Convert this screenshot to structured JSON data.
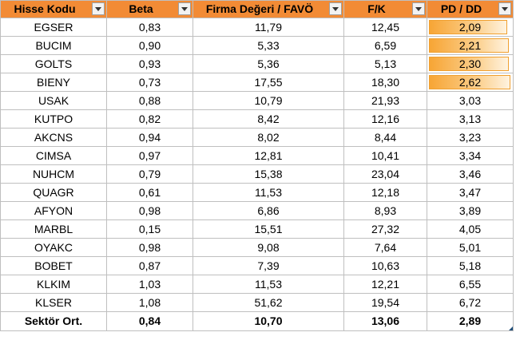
{
  "columns": [
    {
      "key": "hisse",
      "label": "Hisse Kodu"
    },
    {
      "key": "beta",
      "label": "Beta"
    },
    {
      "key": "fd",
      "label": "Firma Değeri / FAVÖ"
    },
    {
      "key": "fk",
      "label": "F/K"
    },
    {
      "key": "pd",
      "label": "PD / DD"
    }
  ],
  "rows": [
    {
      "hisse": "EGSER",
      "beta": "0,83",
      "fd": "11,79",
      "fk": "12,45",
      "pd": "2,09",
      "bar": 0.95
    },
    {
      "hisse": "BUCIM",
      "beta": "0,90",
      "fd": "5,33",
      "fk": "6,59",
      "pd": "2,21",
      "bar": 0.97
    },
    {
      "hisse": "GOLTS",
      "beta": "0,93",
      "fd": "5,36",
      "fk": "5,13",
      "pd": "2,30",
      "bar": 0.97
    },
    {
      "hisse": "BIENY",
      "beta": "0,73",
      "fd": "17,55",
      "fk": "18,30",
      "pd": "2,62",
      "bar": 0.99
    },
    {
      "hisse": "USAK",
      "beta": "0,88",
      "fd": "10,79",
      "fk": "21,93",
      "pd": "3,03",
      "bar": 0
    },
    {
      "hisse": "KUTPO",
      "beta": "0,82",
      "fd": "8,42",
      "fk": "12,16",
      "pd": "3,13",
      "bar": 0
    },
    {
      "hisse": "AKCNS",
      "beta": "0,94",
      "fd": "8,02",
      "fk": "8,44",
      "pd": "3,23",
      "bar": 0
    },
    {
      "hisse": "CIMSA",
      "beta": "0,97",
      "fd": "12,81",
      "fk": "10,41",
      "pd": "3,34",
      "bar": 0
    },
    {
      "hisse": "NUHCM",
      "beta": "0,79",
      "fd": "15,38",
      "fk": "23,04",
      "pd": "3,46",
      "bar": 0
    },
    {
      "hisse": "QUAGR",
      "beta": "0,61",
      "fd": "11,53",
      "fk": "12,18",
      "pd": "3,47",
      "bar": 0
    },
    {
      "hisse": "AFYON",
      "beta": "0,98",
      "fd": "6,86",
      "fk": "8,93",
      "pd": "3,89",
      "bar": 0
    },
    {
      "hisse": "MARBL",
      "beta": "0,15",
      "fd": "15,51",
      "fk": "27,32",
      "pd": "4,05",
      "bar": 0
    },
    {
      "hisse": "OYAKC",
      "beta": "0,98",
      "fd": "9,08",
      "fk": "7,64",
      "pd": "5,01",
      "bar": 0
    },
    {
      "hisse": "BOBET",
      "beta": "0,87",
      "fd": "7,39",
      "fk": "10,63",
      "pd": "5,18",
      "bar": 0
    },
    {
      "hisse": "KLKIM",
      "beta": "1,03",
      "fd": "11,53",
      "fk": "12,21",
      "pd": "6,55",
      "bar": 0
    },
    {
      "hisse": "KLSER",
      "beta": "1,08",
      "fd": "51,62",
      "fk": "19,54",
      "pd": "6,72",
      "bar": 0
    }
  ],
  "footer": {
    "hisse": "Sektör Ort.",
    "beta": "0,84",
    "fd": "10,70",
    "fk": "13,06",
    "pd": "2,89"
  },
  "icons": {
    "filter": "dropdown-arrow-icon"
  },
  "colors": {
    "header_bg": "#f28b35",
    "header_text": "#ffffff",
    "databar": "#f7a535",
    "grid": "#bfbfbf"
  }
}
